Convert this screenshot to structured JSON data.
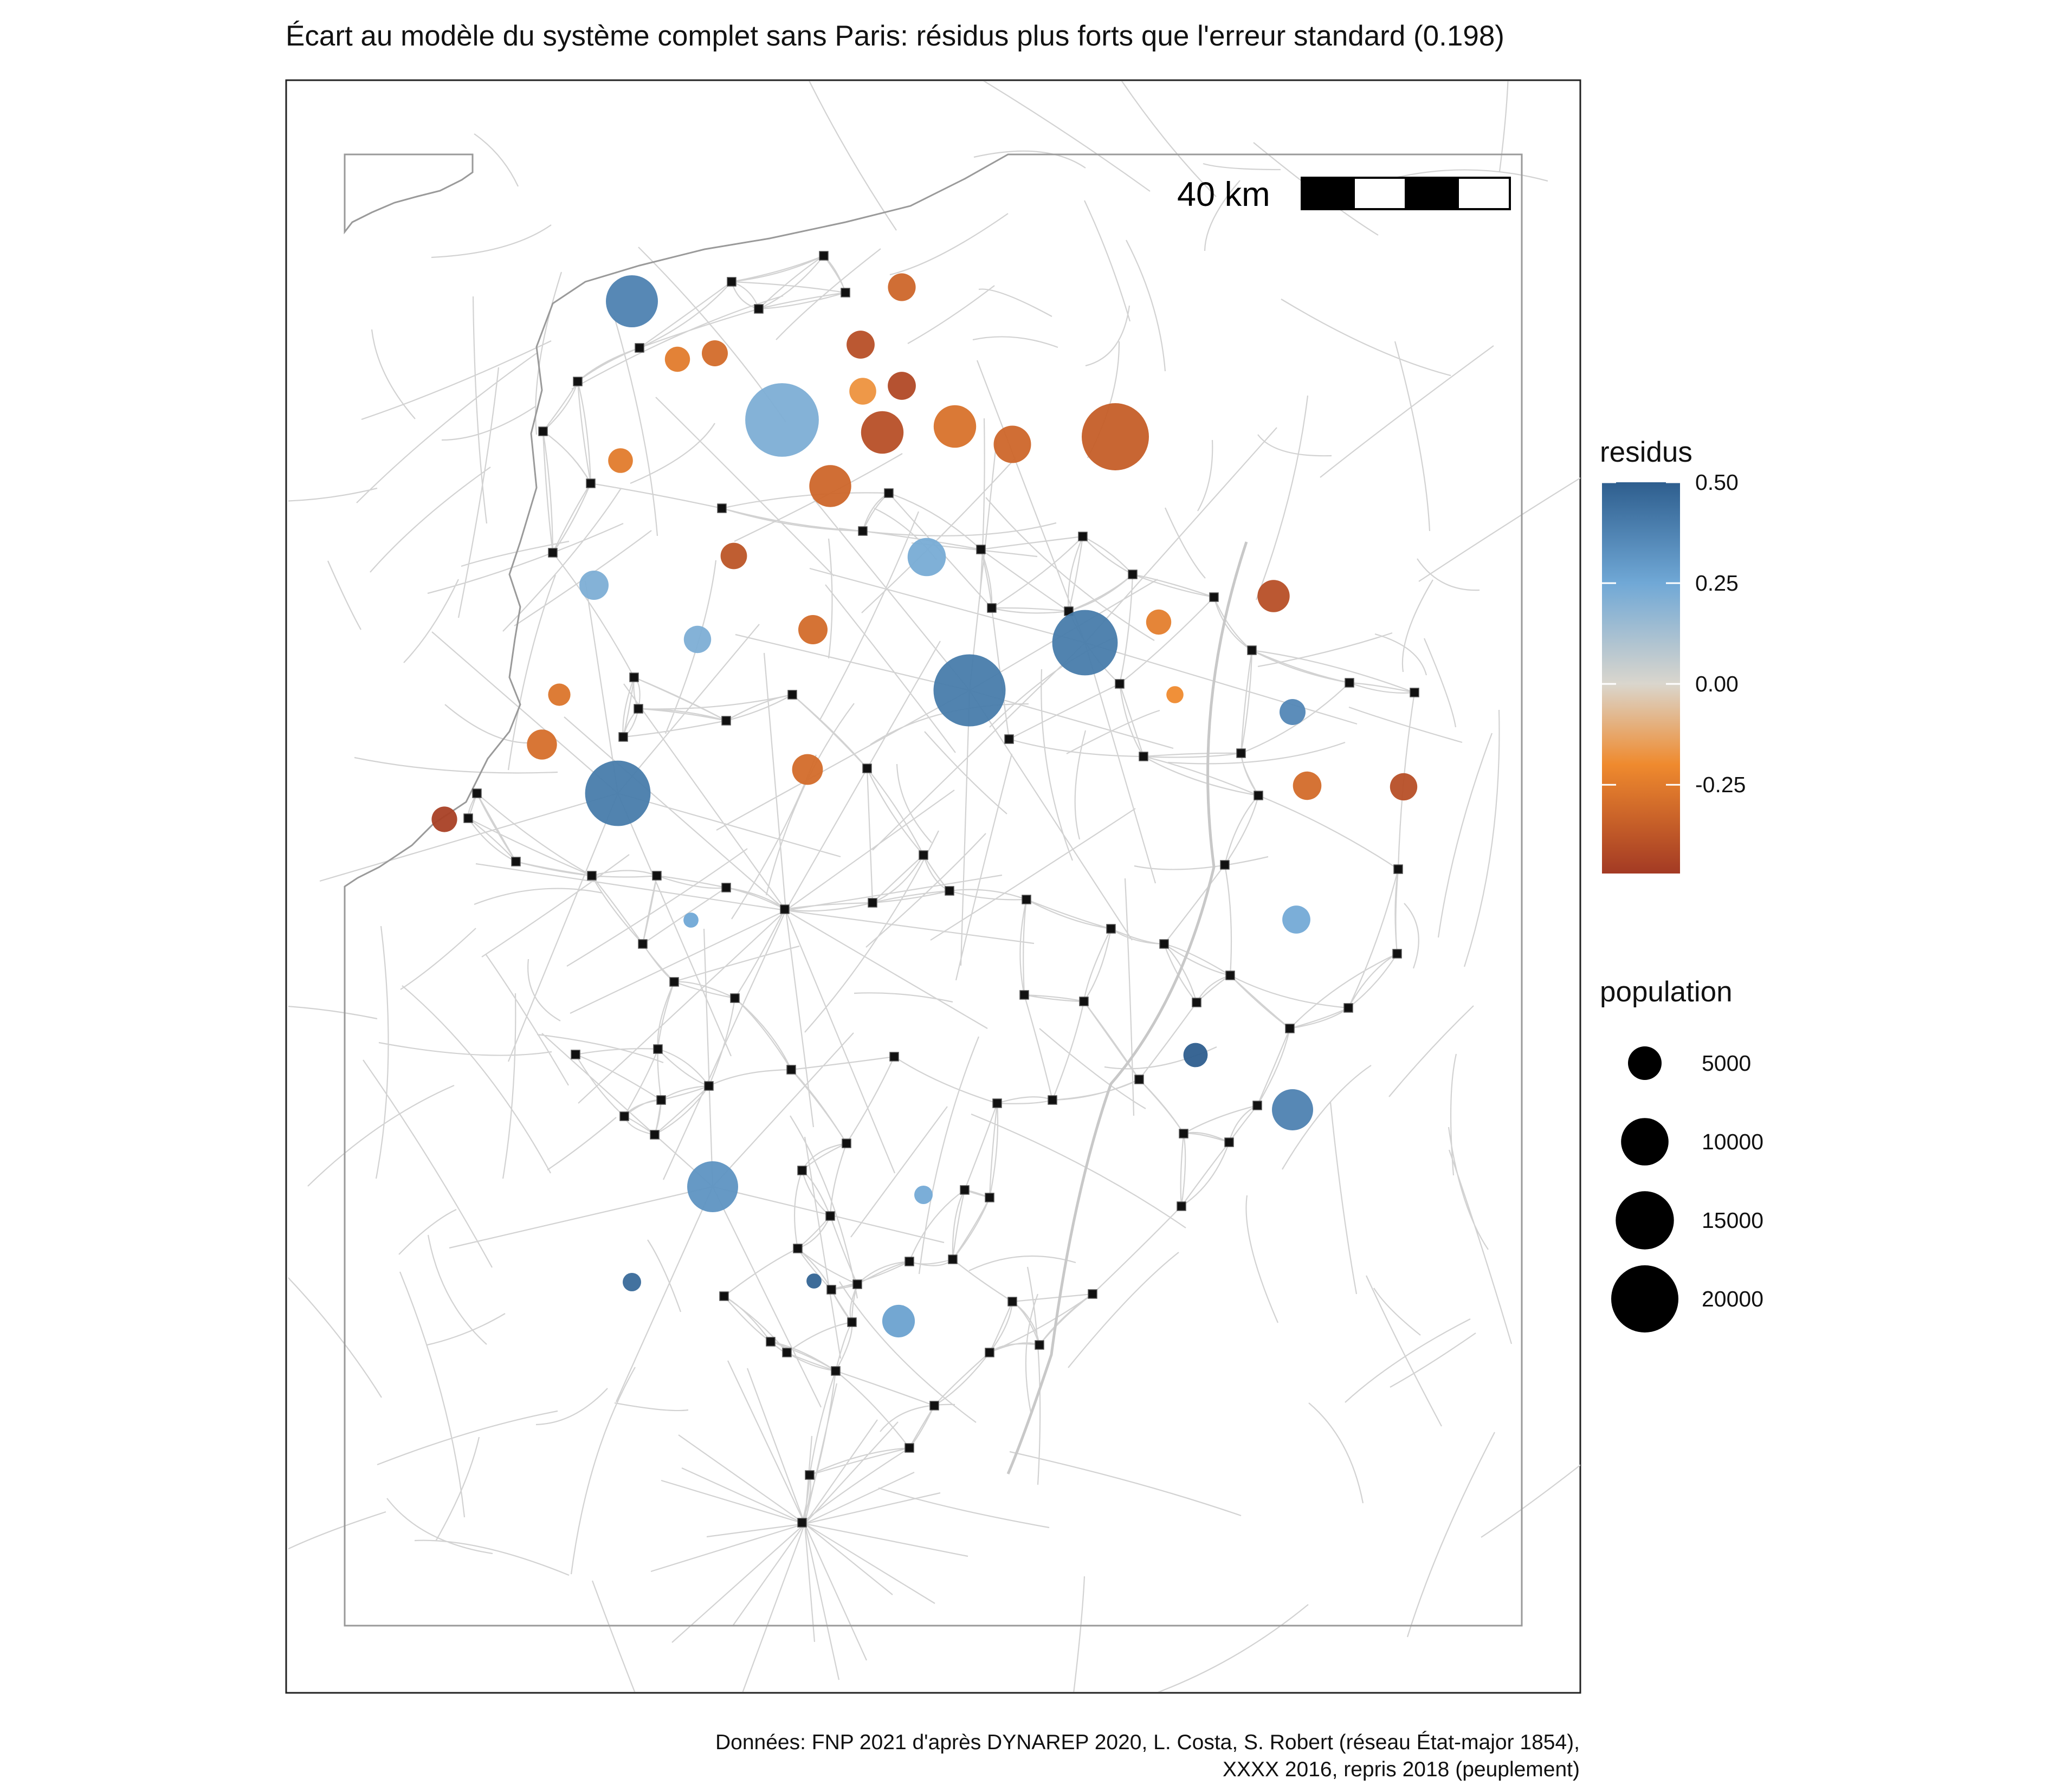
{
  "title": "Écart au modèle du système complet sans Paris: résidus plus forts que l'erreur standard (0.198)",
  "caption": {
    "line1": "Données: FNP 2021 d'après DYNAREP 2020, L. Costa, S. Robert (réseau État-major 1854),",
    "line2": "XXXX 2016, repris 2018 (peuplement)"
  },
  "scale_bar": {
    "label": "40 km"
  },
  "legend": {
    "color": {
      "title": "residus",
      "ticks": [
        {
          "label": "0.50",
          "value": 0.5
        },
        {
          "label": "0.25",
          "value": 0.25
        },
        {
          "label": "0.00",
          "value": 0.0
        },
        {
          "label": "-0.25",
          "value": -0.25
        }
      ],
      "min": -0.47,
      "max": 0.5,
      "stops": [
        {
          "value": 0.5,
          "color": "#2e5e8e"
        },
        {
          "value": 0.25,
          "color": "#70a8d6"
        },
        {
          "value": 0.0,
          "color": "#dad6cd"
        },
        {
          "value": -0.2,
          "color": "#ef8a2e"
        },
        {
          "value": -0.47,
          "color": "#a33a24"
        }
      ]
    },
    "size": {
      "title": "population",
      "entries": [
        {
          "label": "5000",
          "value": 5000
        },
        {
          "label": "10000",
          "value": 10000
        },
        {
          "label": "15000",
          "value": 15000
        },
        {
          "label": "20000",
          "value": 20000
        }
      ]
    }
  },
  "colors": {
    "coastline": "#9a9a9a",
    "road": "#d2d2d2",
    "frame": "#222222",
    "node": "#111111"
  },
  "icons": {
    "city-node": "small black square marker",
    "scale-bar": "alternating black and white segments"
  }
}
